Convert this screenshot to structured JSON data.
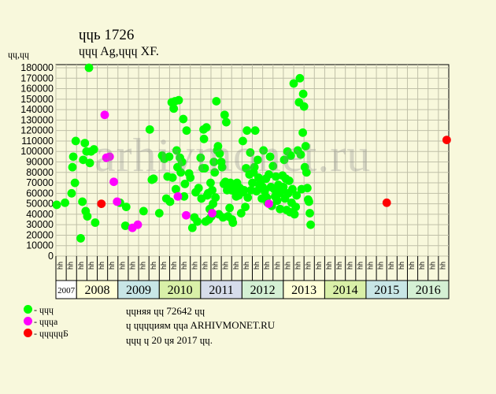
{
  "header": {
    "title": "ɥɥь 1726",
    "subtitle": "ɥɥɥ Ag,ɥɥɥ XF.",
    "ylabel": "ɥɥ,ɥɥ"
  },
  "watermark": "arhivmonet.ru",
  "legend": [
    {
      "label": "- ɥɥɥ",
      "color": "#00ff00"
    },
    {
      "label": "- ɥɥɥa",
      "color": "#ff00ff"
    },
    {
      "label": "- ɥɥɥɥɥБ",
      "color": "#ff0000"
    }
  ],
  "notes": [
    "ɥɥняя ɥɥ 72642 ɥɥ",
    "ɥ ɥɥɥɥиям ɥɥa ARHIVMONET.RU",
    "ɥɥɥ ɥ 20 ɥя 2017 ɥɥ."
  ],
  "chart_data": {
    "type": "scatter",
    "title": "ɥɥь 1726",
    "ylabel": "ɥɥ,ɥɥ",
    "ylim": [
      0,
      180000
    ],
    "yticks": [
      0,
      10000,
      20000,
      30000,
      40000,
      50000,
      60000,
      70000,
      80000,
      90000,
      100000,
      110000,
      120000,
      130000,
      140000,
      150000,
      160000,
      170000,
      180000
    ],
    "grid": true,
    "legend_position": "bottom-left",
    "x_start": 2007.5,
    "x_end": 2017.0,
    "month_ticks": [
      "ɥɥ",
      "ɥɥ",
      "ɥɥ",
      "ɥɥ",
      "ɥɥ",
      "ɥɥ",
      "ɥɥ",
      "ɥɥ",
      "ɥɥ",
      "ɥɥ",
      "ɥɥ",
      "ɥɥ",
      "ɥɥ",
      "ɥɥ",
      "ɥɥ",
      "ɥɥ",
      "ɥɥ",
      "ɥɥ",
      "ɥɥ",
      "ɥɥ",
      "ɥɥ",
      "ɥɥ",
      "ɥɥ",
      "ɥɥ",
      "ɥɥ",
      "ɥɥ",
      "ɥɥ",
      "ɥɥ",
      "ɥɥ",
      "ɥɥ",
      "ɥɥ",
      "ɥɥ",
      "ɥɥ",
      "ɥɥ",
      "ɥɥ",
      "ɥɥ",
      "ɥɥ",
      "ɥɥ"
    ],
    "years": [
      {
        "label": "2007",
        "start": 2007.5,
        "end": 2008.0,
        "color": "#ffffff"
      },
      {
        "label": "2008",
        "start": 2008.0,
        "end": 2009.0,
        "color": "#ffffd8"
      },
      {
        "label": "2009",
        "start": 2009.0,
        "end": 2010.0,
        "color": "#c8e6e6"
      },
      {
        "label": "2010",
        "start": 2010.0,
        "end": 2011.0,
        "color": "#d9f0a8"
      },
      {
        "label": "2011",
        "start": 2011.0,
        "end": 2012.0,
        "color": "#d6dcea"
      },
      {
        "label": "2012",
        "start": 2012.0,
        "end": 2013.0,
        "color": "#d4f0d4"
      },
      {
        "label": "2013",
        "start": 2013.0,
        "end": 2014.0,
        "color": "#ffffd8"
      },
      {
        "label": "2014",
        "start": 2014.0,
        "end": 2015.0,
        "color": "#d9f0a8"
      },
      {
        "label": "2015",
        "start": 2015.0,
        "end": 2016.0,
        "color": "#c8e6e6"
      },
      {
        "label": "2016",
        "start": 2016.0,
        "end": 2017.0,
        "color": "#d4f0d4"
      }
    ],
    "series": [
      {
        "name": "- ɥɥɥ",
        "color": "#00ff00",
        "points": [
          [
            2007.52,
            49000
          ],
          [
            2007.72,
            51000
          ],
          [
            2007.88,
            60000
          ],
          [
            2007.9,
            85000
          ],
          [
            2007.92,
            95000
          ],
          [
            2007.96,
            70000
          ],
          [
            2007.98,
            110000
          ],
          [
            2008.1,
            17000
          ],
          [
            2008.14,
            52000
          ],
          [
            2008.16,
            92000
          ],
          [
            2008.2,
            108000
          ],
          [
            2008.22,
            43000
          ],
          [
            2008.24,
            100000
          ],
          [
            2008.26,
            38000
          ],
          [
            2008.3,
            180000
          ],
          [
            2008.32,
            89000
          ],
          [
            2008.35,
            100000
          ],
          [
            2008.42,
            102000
          ],
          [
            2008.45,
            32000
          ],
          [
            2009.05,
            51000
          ],
          [
            2009.18,
            29000
          ],
          [
            2009.2,
            47000
          ],
          [
            2009.62,
            43000
          ],
          [
            2009.77,
            121000
          ],
          [
            2009.82,
            73000
          ],
          [
            2009.86,
            74000
          ],
          [
            2010.0,
            41000
          ],
          [
            2010.07,
            96000
          ],
          [
            2010.12,
            93000
          ],
          [
            2010.17,
            55000
          ],
          [
            2010.2,
            76000
          ],
          [
            2010.24,
            95000
          ],
          [
            2010.26,
            52000
          ],
          [
            2010.3,
            147000
          ],
          [
            2010.32,
            75000
          ],
          [
            2010.35,
            141000
          ],
          [
            2010.38,
            148000
          ],
          [
            2010.4,
            64000
          ],
          [
            2010.42,
            101000
          ],
          [
            2010.44,
            85000
          ],
          [
            2010.47,
            149000
          ],
          [
            2010.5,
            94000
          ],
          [
            2010.52,
            80000
          ],
          [
            2010.55,
            90000
          ],
          [
            2010.58,
            131000
          ],
          [
            2010.6,
            57000
          ],
          [
            2010.62,
            69000
          ],
          [
            2010.66,
            120000
          ],
          [
            2010.72,
            79000
          ],
          [
            2010.75,
            75000
          ],
          [
            2010.8,
            27000
          ],
          [
            2010.85,
            37000
          ],
          [
            2010.88,
            61000
          ],
          [
            2010.92,
            33000
          ],
          [
            2010.95,
            65000
          ],
          [
            2011.0,
            94000
          ],
          [
            2011.02,
            55000
          ],
          [
            2011.05,
            84000
          ],
          [
            2011.07,
            121000
          ],
          [
            2011.08,
            112000
          ],
          [
            2011.1,
            84000
          ],
          [
            2011.12,
            33000
          ],
          [
            2011.14,
            123000
          ],
          [
            2011.16,
            58000
          ],
          [
            2011.18,
            60000
          ],
          [
            2011.2,
            35000
          ],
          [
            2011.22,
            45000
          ],
          [
            2011.24,
            70000
          ],
          [
            2011.26,
            38000
          ],
          [
            2011.28,
            63000
          ],
          [
            2011.3,
            50000
          ],
          [
            2011.32,
            90000
          ],
          [
            2011.34,
            80000
          ],
          [
            2011.36,
            56000
          ],
          [
            2011.38,
            148000
          ],
          [
            2011.4,
            101000
          ],
          [
            2011.42,
            105000
          ],
          [
            2011.44,
            40000
          ],
          [
            2011.46,
            98000
          ],
          [
            2011.5,
            90000
          ],
          [
            2011.52,
            85000
          ],
          [
            2011.54,
            37000
          ],
          [
            2011.56,
            69000
          ],
          [
            2011.58,
            135000
          ],
          [
            2011.6,
            71000
          ],
          [
            2011.62,
            128000
          ],
          [
            2011.64,
            63000
          ],
          [
            2011.66,
            38000
          ],
          [
            2011.68,
            67000
          ],
          [
            2011.7,
            46000
          ],
          [
            2011.72,
            70000
          ],
          [
            2011.74,
            63000
          ],
          [
            2011.76,
            35000
          ],
          [
            2011.78,
            32000
          ],
          [
            2011.8,
            67000
          ],
          [
            2011.82,
            62000
          ],
          [
            2011.84,
            64000
          ],
          [
            2011.86,
            57000
          ],
          [
            2011.88,
            70000
          ],
          [
            2011.92,
            58000
          ],
          [
            2011.95,
            65000
          ],
          [
            2011.98,
            41000
          ],
          [
            2012.0,
            61000
          ],
          [
            2012.02,
            110000
          ],
          [
            2012.05,
            63000
          ],
          [
            2012.08,
            47000
          ],
          [
            2012.1,
            84000
          ],
          [
            2012.12,
            120000
          ],
          [
            2012.14,
            56000
          ],
          [
            2012.18,
            78000
          ],
          [
            2012.2,
            99000
          ],
          [
            2012.22,
            63000
          ],
          [
            2012.25,
            70000
          ],
          [
            2012.28,
            80000
          ],
          [
            2012.3,
            85000
          ],
          [
            2012.32,
            120000
          ],
          [
            2012.35,
            62000
          ],
          [
            2012.38,
            92000
          ],
          [
            2012.4,
            75000
          ],
          [
            2012.42,
            68000
          ],
          [
            2012.45,
            71000
          ],
          [
            2012.48,
            55000
          ],
          [
            2012.5,
            66000
          ],
          [
            2012.52,
            101000
          ],
          [
            2012.55,
            62000
          ],
          [
            2012.58,
            74000
          ],
          [
            2012.6,
            56000
          ],
          [
            2012.62,
            51000
          ],
          [
            2012.65,
            78000
          ],
          [
            2012.68,
            95000
          ],
          [
            2012.7,
            66000
          ],
          [
            2012.72,
            48000
          ],
          [
            2012.75,
            86000
          ],
          [
            2012.78,
            64000
          ],
          [
            2012.8,
            57000
          ],
          [
            2012.82,
            76000
          ],
          [
            2012.85,
            53000
          ],
          [
            2012.88,
            68000
          ],
          [
            2012.9,
            60000
          ],
          [
            2012.92,
            45000
          ],
          [
            2012.95,
            62000
          ],
          [
            2012.98,
            77000
          ],
          [
            2013.0,
            66000
          ],
          [
            2013.02,
            92000
          ],
          [
            2013.04,
            55000
          ],
          [
            2013.06,
            74000
          ],
          [
            2013.08,
            44000
          ],
          [
            2013.1,
            100000
          ],
          [
            2013.12,
            60000
          ],
          [
            2013.14,
            72000
          ],
          [
            2013.16,
            42000
          ],
          [
            2013.18,
            96000
          ],
          [
            2013.2,
            51000
          ],
          [
            2013.22,
            64000
          ],
          [
            2013.25,
            165000
          ],
          [
            2013.27,
            40000
          ],
          [
            2013.3,
            47000
          ],
          [
            2013.32,
            58000
          ],
          [
            2013.35,
            101000
          ],
          [
            2013.38,
            147000
          ],
          [
            2013.4,
            170000
          ],
          [
            2013.42,
            97000
          ],
          [
            2013.44,
            64000
          ],
          [
            2013.47,
            118000
          ],
          [
            2013.48,
            155000
          ],
          [
            2013.5,
            143000
          ],
          [
            2013.52,
            85000
          ],
          [
            2013.54,
            105000
          ],
          [
            2013.56,
            80000
          ],
          [
            2013.58,
            65000
          ],
          [
            2013.6,
            54000
          ],
          [
            2013.62,
            52000
          ],
          [
            2013.64,
            41000
          ],
          [
            2013.66,
            30000
          ]
        ]
      },
      {
        "name": "- ɥɥɥa",
        "color": "#ff00ff",
        "points": [
          [
            2008.68,
            135000
          ],
          [
            2008.72,
            94000
          ],
          [
            2008.8,
            95000
          ],
          [
            2008.9,
            71000
          ],
          [
            2008.98,
            52000
          ],
          [
            2009.35,
            27000
          ],
          [
            2009.48,
            30000
          ],
          [
            2010.45,
            57000
          ],
          [
            2010.65,
            39000
          ],
          [
            2011.28,
            41000
          ],
          [
            2012.65,
            50000
          ]
        ]
      },
      {
        "name": "- ɥɥɥɥɥБ",
        "color": "#ff0000",
        "points": [
          [
            2008.6,
            50000
          ],
          [
            2015.5,
            51000
          ],
          [
            2016.95,
            111000
          ]
        ]
      }
    ]
  }
}
